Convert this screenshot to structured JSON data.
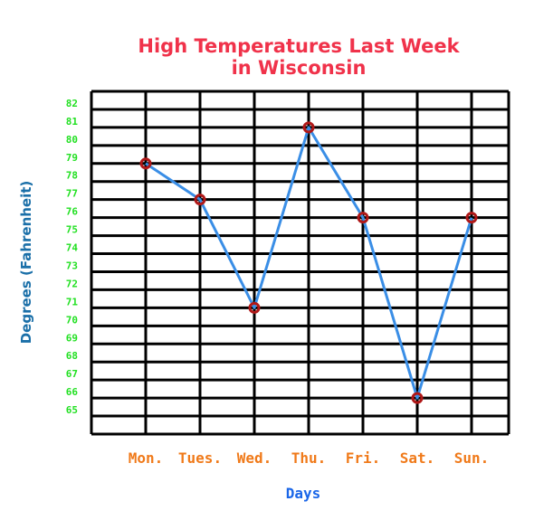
{
  "chart_data": {
    "type": "line",
    "title_line1": "High Temperatures Last Week",
    "title_line2": "in Wisconsin",
    "xlabel": "Days",
    "ylabel": "Degrees (Fahrenheit)",
    "categories": [
      "Mon.",
      "Tues.",
      "Wed.",
      "Thu.",
      "Fri.",
      "Sat.",
      "Sun."
    ],
    "values": [
      79,
      77,
      71,
      81,
      76,
      66,
      76
    ],
    "y_ticks": [
      65,
      66,
      67,
      68,
      69,
      70,
      71,
      72,
      73,
      74,
      75,
      76,
      77,
      78,
      79,
      80,
      81,
      82
    ],
    "ylim": [
      64,
      83
    ],
    "grid": true,
    "colors": {
      "title": "#f0324a",
      "line": "#3a8ee6",
      "marker": "#b01818",
      "grid": "#000000",
      "y_ticks": "#22e022",
      "x_ticks": "#f07a1a",
      "xlabel": "#1a66e8",
      "ylabel": "#1a6fa8"
    }
  }
}
